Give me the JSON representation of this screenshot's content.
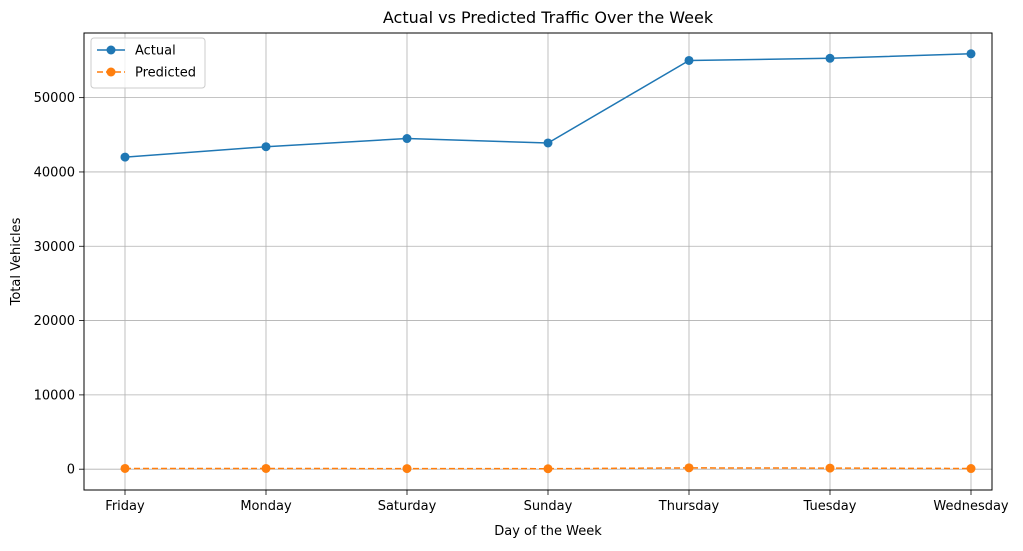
{
  "chart_data": {
    "type": "line",
    "title": "Actual vs Predicted Traffic Over the Week",
    "xlabel": "Day of the Week",
    "ylabel": "Total Vehicles",
    "categories": [
      "Friday",
      "Monday",
      "Saturday",
      "Sunday",
      "Thursday",
      "Tuesday",
      "Wednesday"
    ],
    "series": [
      {
        "name": "Actual",
        "values": [
          42000,
          43400,
          44500,
          43900,
          55000,
          55300,
          55900
        ],
        "color": "#1f77b4",
        "line_style": "solid",
        "marker": "circle"
      },
      {
        "name": "Predicted",
        "values": [
          100,
          100,
          80,
          60,
          180,
          150,
          90
        ],
        "color": "#ff7f0e",
        "line_style": "dashed",
        "marker": "circle"
      }
    ],
    "yticks": [
      0,
      10000,
      20000,
      30000,
      40000,
      50000
    ],
    "ylim": [
      -2800,
      58700
    ],
    "grid": true,
    "legend_position": "upper-left"
  }
}
